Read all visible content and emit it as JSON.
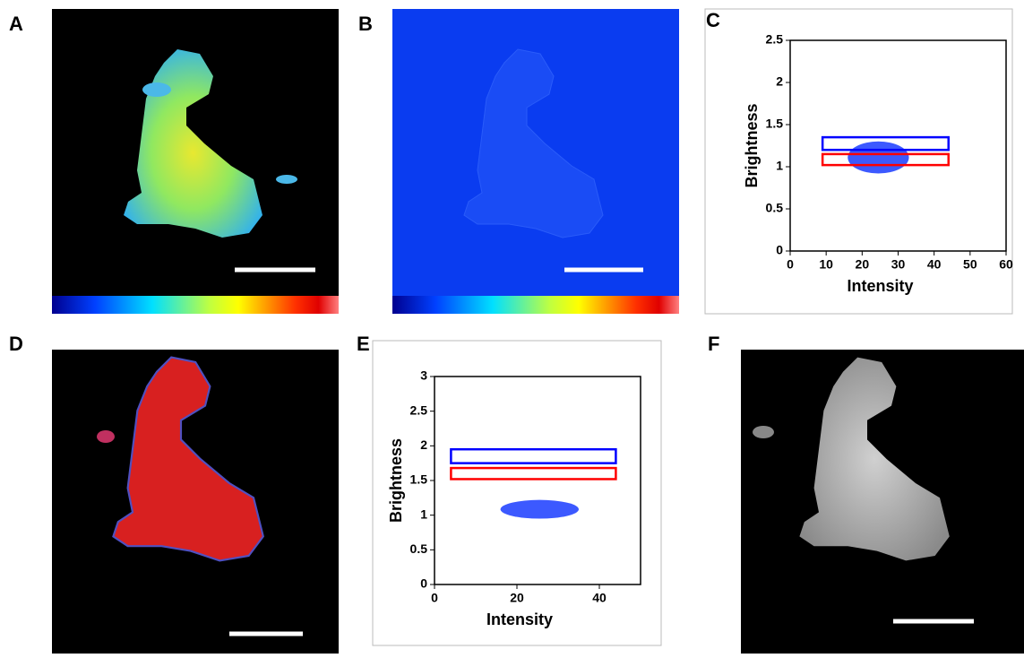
{
  "panel_labels": [
    "A",
    "B",
    "C",
    "D",
    "E",
    "F"
  ],
  "chart_data": [
    {
      "type": "scatter",
      "xlabel": "Intensity",
      "ylabel": "Brightness",
      "xlim": [
        0,
        60
      ],
      "ylim": [
        0,
        2.5
      ],
      "xticks": [
        0,
        10,
        20,
        30,
        40,
        50,
        60
      ],
      "yticks": [
        0,
        0.5,
        1,
        1.5,
        2,
        2.5
      ],
      "gates": [
        {
          "color": "#0000ff",
          "x": [
            9,
            44
          ],
          "y": [
            1.2,
            1.35
          ]
        },
        {
          "color": "#ff0000",
          "x": [
            9,
            44
          ],
          "y": [
            1.02,
            1.15
          ]
        }
      ],
      "cloud": {
        "color": "#1a3cff",
        "x": [
          16,
          33
        ],
        "y": [
          0.92,
          1.3
        ]
      }
    },
    {
      "type": "scatter",
      "xlabel": "Intensity",
      "ylabel": "Brightness",
      "xlim": [
        0,
        50
      ],
      "ylim": [
        0,
        3
      ],
      "xticks": [
        0,
        20,
        40
      ],
      "yticks": [
        0,
        0.5,
        1,
        1.5,
        2,
        2.5,
        3
      ],
      "gates": [
        {
          "color": "#0000ff",
          "x": [
            4,
            44
          ],
          "y": [
            1.75,
            1.95
          ]
        },
        {
          "color": "#ff0000",
          "x": [
            4,
            44
          ],
          "y": [
            1.52,
            1.68
          ]
        }
      ],
      "cloud": {
        "color": "#1a3cff",
        "x": [
          16,
          35
        ],
        "y": [
          0.95,
          1.22
        ]
      }
    }
  ]
}
